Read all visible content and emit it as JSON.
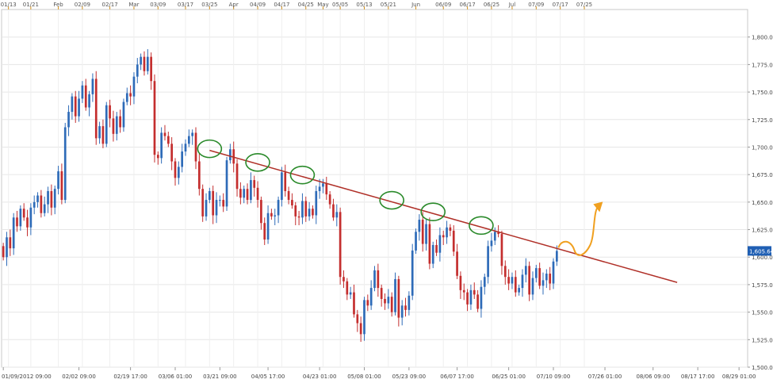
{
  "chart_data": {
    "type": "candlestick",
    "title": "",
    "xlabel": "",
    "ylabel": "",
    "ylim": [
      1500,
      1825
    ],
    "y_ticks": [
      1500,
      1525,
      1550,
      1575,
      1600,
      1625,
      1650,
      1675,
      1700,
      1725,
      1750,
      1775,
      1800
    ],
    "y_tick_labels": [
      "1,500.00",
      "1,525.00",
      "1,550.00",
      "1,575.00",
      "1,600.00",
      "1,625.00",
      "1,650.00",
      "1,675.00",
      "1,700.00",
      "1,725.00",
      "1,750.00",
      "1,775.00",
      "1,800.00"
    ],
    "current_price_label": "1,605.64",
    "current_price": 1605.64,
    "top_axis_labels": [
      "01/13",
      "01/21",
      "Feb",
      "02/09",
      "02/17",
      "Mar",
      "03/09",
      "03/17",
      "03/25",
      "Apr",
      "04/09",
      "04/17",
      "04/25",
      "May",
      "05/05",
      "05/13",
      "05/21",
      "Jun",
      "06/09",
      "06/17",
      "06/25",
      "Jul",
      "07/09",
      "07/17",
      "07/25"
    ],
    "top_axis_label_index": [
      1.5,
      8,
      16,
      23,
      31,
      38,
      45,
      53,
      60,
      67,
      74,
      81,
      88,
      93,
      98,
      105,
      112,
      120,
      128,
      135,
      142,
      148,
      155,
      162,
      169
    ],
    "bottom_axis_labels": [
      "01/09/2012 09:00",
      "02/02 09:00",
      "02/19 17:00",
      "03/06 01:00",
      "03/21 09:00",
      "04/05 17:00",
      "04/23 01:00",
      "05/08 01:00",
      "05/23 09:00",
      "06/07 17:00",
      "06/25 01:00",
      "07/10 09:00",
      "07/26 01:00",
      "08/06 09:00",
      "08/17 17:00",
      "08/29 01:00"
    ],
    "bottom_axis_label_index": [
      0,
      22,
      37,
      50,
      63,
      77,
      92,
      105,
      118,
      132,
      147,
      160,
      175,
      189,
      202,
      214
    ],
    "grid": true,
    "colors": {
      "up": "#2e6bb8",
      "down": "#c42e2e",
      "grid": "#e6e6e6",
      "trendline": "#b03028",
      "highlight_circle": "#2a8a2a",
      "projection_arrow": "#f0a020",
      "price_box": "#1f5fb4"
    },
    "series": [
      {
        "values": [
          1600,
          1618,
          1608,
          1636,
          1628,
          1644,
          1636,
          1627,
          1645,
          1650,
          1656,
          1640,
          1648,
          1660,
          1645,
          1662,
          1678,
          1652,
          1718,
          1732,
          1746,
          1728,
          1744,
          1756,
          1736,
          1748,
          1762,
          1708,
          1719,
          1703,
          1738,
          1726,
          1712,
          1728,
          1718,
          1741,
          1749,
          1746,
          1764,
          1775,
          1782,
          1769,
          1782,
          1760,
          1693,
          1690,
          1713,
          1710,
          1703,
          1687,
          1672,
          1682,
          1696,
          1703,
          1710,
          1713,
          1687,
          1662,
          1637,
          1652,
          1660,
          1638,
          1652,
          1652,
          1646,
          1688,
          1698,
          1685,
          1662,
          1654,
          1662,
          1652,
          1670,
          1663,
          1652,
          1631,
          1616,
          1640,
          1637,
          1638,
          1652,
          1677,
          1660,
          1652,
          1647,
          1637,
          1636,
          1651,
          1637,
          1644,
          1638,
          1660,
          1664,
          1667,
          1657,
          1648,
          1636,
          1641,
          1582,
          1578,
          1566,
          1568,
          1548,
          1540,
          1530,
          1561,
          1556,
          1572,
          1588,
          1572,
          1562,
          1558,
          1564,
          1550,
          1580,
          1545,
          1556,
          1552,
          1565,
          1606,
          1623,
          1634,
          1612,
          1630,
          1594,
          1611,
          1604,
          1620,
          1618,
          1627,
          1624,
          1605,
          1583,
          1570,
          1568,
          1557,
          1570,
          1566,
          1553,
          1573,
          1582,
          1610,
          1615,
          1623,
          1621,
          1592,
          1582,
          1576,
          1582,
          1568,
          1572,
          1584,
          1592,
          1566,
          1581,
          1590,
          1574,
          1579,
          1585,
          1576,
          1596,
          1605.64
        ],
        "open": [
          1610,
          1600,
          1618,
          1608,
          1636,
          1628,
          1644,
          1636,
          1627,
          1645,
          1650,
          1656,
          1640,
          1648,
          1660,
          1645,
          1662,
          1678,
          1652,
          1718,
          1732,
          1746,
          1728,
          1744,
          1756,
          1736,
          1748,
          1762,
          1708,
          1719,
          1703,
          1738,
          1726,
          1712,
          1728,
          1718,
          1741,
          1749,
          1746,
          1764,
          1775,
          1782,
          1769,
          1782,
          1760,
          1693,
          1690,
          1713,
          1710,
          1703,
          1687,
          1672,
          1682,
          1696,
          1703,
          1710,
          1713,
          1687,
          1662,
          1637,
          1652,
          1660,
          1638,
          1652,
          1652,
          1646,
          1688,
          1698,
          1685,
          1662,
          1654,
          1662,
          1652,
          1670,
          1663,
          1652,
          1631,
          1616,
          1640,
          1637,
          1638,
          1652,
          1677,
          1660,
          1652,
          1647,
          1637,
          1636,
          1651,
          1637,
          1644,
          1638,
          1660,
          1664,
          1667,
          1657,
          1648,
          1636,
          1641,
          1582,
          1578,
          1566,
          1568,
          1548,
          1540,
          1530,
          1561,
          1556,
          1572,
          1588,
          1572,
          1562,
          1558,
          1564,
          1550,
          1580,
          1545,
          1556,
          1552,
          1565,
          1606,
          1623,
          1634,
          1612,
          1630,
          1594,
          1611,
          1604,
          1620,
          1618,
          1627,
          1624,
          1605,
          1583,
          1570,
          1568,
          1557,
          1570,
          1566,
          1553,
          1573,
          1582,
          1610,
          1615,
          1623,
          1621,
          1592,
          1582,
          1576,
          1582,
          1568,
          1572,
          1584,
          1592,
          1566,
          1581,
          1590,
          1574,
          1579,
          1585,
          1576,
          1596
        ]
      },
      {
        "name": "",
        "type": "trendline",
        "x": [
          60,
          196
        ],
        "y": [
          1697,
          1577
        ]
      }
    ],
    "highlight_index": [
      60,
      74,
      87,
      113,
      125,
      139
    ]
  }
}
